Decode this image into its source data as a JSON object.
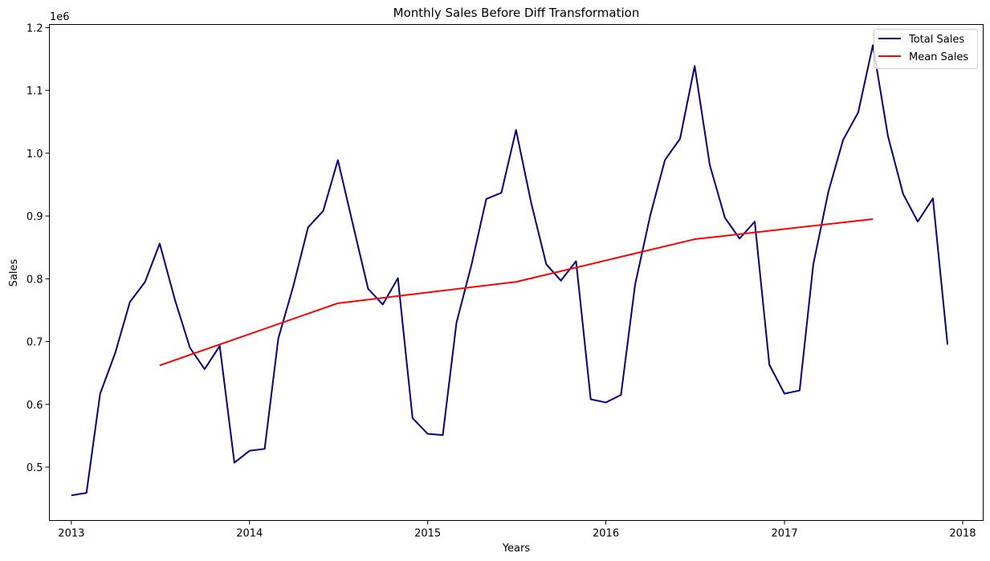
{
  "chart_data": {
    "type": "line",
    "title": "Monthly Sales Before Diff Transformation",
    "xlabel": "Years",
    "ylabel": "Sales",
    "y_offset_label": "1e6",
    "xlim": [
      "2012-11-17",
      "2018-02-12"
    ],
    "ylim": [
      0.415,
      1.205
    ],
    "y_scale": 1000000,
    "x_ticks": [
      "2013-01-01",
      "2014-01-01",
      "2015-01-01",
      "2016-01-01",
      "2017-01-01",
      "2018-01-01"
    ],
    "x_tick_labels": [
      "2013",
      "2014",
      "2015",
      "2016",
      "2017",
      "2018"
    ],
    "y_ticks": [
      0.5,
      0.6,
      0.7,
      0.8,
      0.9,
      1.0,
      1.1,
      1.2
    ],
    "y_tick_labels": [
      "0.5",
      "0.6",
      "0.7",
      "0.8",
      "0.9",
      "1.0",
      "1.1",
      "1.2"
    ],
    "grid": false,
    "legend_position": "top-right",
    "series": [
      {
        "name": "Total Sales",
        "color": "#00008b",
        "x": [
          "2013-01-01",
          "2013-02-01",
          "2013-03-01",
          "2013-04-01",
          "2013-05-01",
          "2013-06-01",
          "2013-07-01",
          "2013-08-01",
          "2013-09-01",
          "2013-10-01",
          "2013-11-01",
          "2013-12-01",
          "2014-01-01",
          "2014-02-01",
          "2014-03-01",
          "2014-04-01",
          "2014-05-01",
          "2014-06-01",
          "2014-07-01",
          "2014-08-01",
          "2014-09-01",
          "2014-10-01",
          "2014-11-01",
          "2014-12-01",
          "2015-01-01",
          "2015-02-01",
          "2015-03-01",
          "2015-04-01",
          "2015-05-01",
          "2015-06-01",
          "2015-07-01",
          "2015-08-01",
          "2015-09-01",
          "2015-10-01",
          "2015-11-01",
          "2015-12-01",
          "2016-01-01",
          "2016-02-01",
          "2016-03-01",
          "2016-04-01",
          "2016-05-01",
          "2016-06-01",
          "2016-07-01",
          "2016-08-01",
          "2016-09-01",
          "2016-10-01",
          "2016-11-01",
          "2016-12-01",
          "2017-01-01",
          "2017-02-01",
          "2017-03-01",
          "2017-04-01",
          "2017-05-01",
          "2017-06-01",
          "2017-07-01",
          "2017-08-01",
          "2017-09-01",
          "2017-10-01",
          "2017-11-01",
          "2017-12-01"
        ],
        "values": [
          0.455,
          0.459,
          0.617,
          0.682,
          0.763,
          0.795,
          0.856,
          0.767,
          0.69,
          0.656,
          0.693,
          0.507,
          0.526,
          0.529,
          0.705,
          0.789,
          0.882,
          0.908,
          0.989,
          0.886,
          0.784,
          0.759,
          0.801,
          0.578,
          0.553,
          0.551,
          0.73,
          0.823,
          0.927,
          0.937,
          1.037,
          0.921,
          0.823,
          0.797,
          0.828,
          0.608,
          0.603,
          0.615,
          0.791,
          0.901,
          0.989,
          1.023,
          1.139,
          0.981,
          0.897,
          0.864,
          0.891,
          0.663,
          0.617,
          0.622,
          0.823,
          0.939,
          1.021,
          1.065,
          1.172,
          1.027,
          0.935,
          0.891,
          0.928,
          0.695
        ]
      },
      {
        "name": "Mean Sales",
        "color": "#ff0000",
        "x": [
          "2013-07-01",
          "2014-07-01",
          "2015-07-01",
          "2016-07-01",
          "2017-07-01"
        ],
        "values": [
          0.662,
          0.761,
          0.795,
          0.863,
          0.895
        ]
      }
    ]
  }
}
